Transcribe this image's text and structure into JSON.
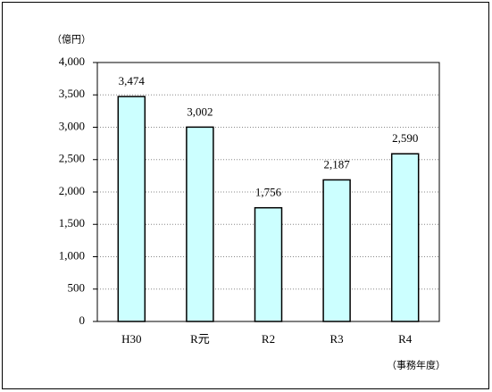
{
  "chart_data": {
    "type": "bar",
    "y_unit_label": "（億円）",
    "x_unit_label": "（事務年度）",
    "categories": [
      "H30",
      "R元",
      "R2",
      "R3",
      "R4"
    ],
    "values": [
      3474,
      3002,
      1756,
      2187,
      2590
    ],
    "value_labels": [
      "3,474",
      "3,002",
      "1,756",
      "2,187",
      "2,590"
    ],
    "color": "#ccffff",
    "ylim": [
      0,
      4000
    ],
    "yticks": [
      0,
      500,
      {
        "value": 1000,
        "label": "1,000"
      },
      {
        "value": 1500,
        "label": "1,500"
      },
      {
        "value": 2000,
        "label": "2,000"
      },
      {
        "value": 2500,
        "label": "2,500"
      },
      {
        "value": 3000,
        "label": "3,000"
      },
      {
        "value": 3500,
        "label": "3,500"
      },
      {
        "value": 4000,
        "label": "4,000"
      }
    ],
    "grid": true
  }
}
